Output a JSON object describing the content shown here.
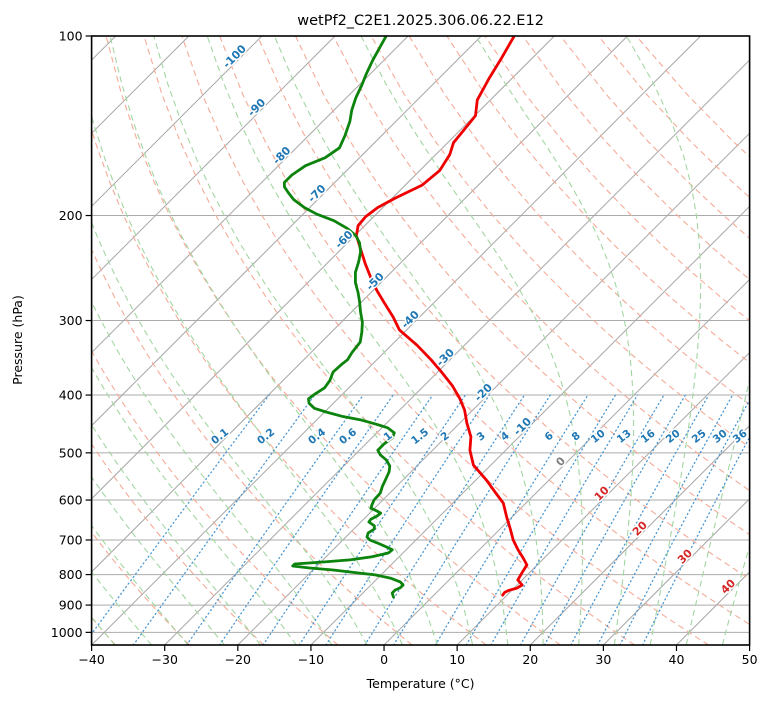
{
  "title": "wetPf2_C2E1.2025.306.06.22.E12",
  "axes": {
    "x_label": "Temperature (°C)",
    "y_label": "Pressure (hPa)",
    "x_ticks": [
      "−40",
      "−30",
      "−20",
      "−10",
      "0",
      "10",
      "20",
      "30",
      "40",
      "50"
    ],
    "x_tick_values": [
      -40,
      -30,
      -20,
      -10,
      0,
      10,
      20,
      30,
      40,
      50
    ],
    "y_ticks": [
      "100",
      "200",
      "300",
      "400",
      "500",
      "600",
      "700",
      "800",
      "900",
      "1000"
    ],
    "y_tick_values": [
      100,
      200,
      300,
      400,
      500,
      600,
      700,
      800,
      900,
      1000
    ]
  },
  "chart_data": {
    "type": "line",
    "variant": "skew-t-log-p",
    "title": "wetPf2_C2E1.2025.306.06.22.E12",
    "xlabel": "Temperature (°C)",
    "ylabel": "Pressure (hPa)",
    "x_range_c": [
      -40,
      50
    ],
    "pressure_range_hpa": [
      100,
      1050
    ],
    "skew_deg": 45,
    "grid": true,
    "legend": "none",
    "series": [
      {
        "name": "temperature",
        "color": "#ee0000",
        "points_p_t": [
          [
            100,
            -65.5
          ],
          [
            109,
            -64.2
          ],
          [
            118,
            -63.1
          ],
          [
            128,
            -61.8
          ],
          [
            136,
            -59.9
          ],
          [
            144,
            -59.5
          ],
          [
            151,
            -59.2
          ],
          [
            158,
            -58.1
          ],
          [
            168,
            -57.3
          ],
          [
            178,
            -57.7
          ],
          [
            187,
            -59.6
          ],
          [
            194,
            -60.7
          ],
          [
            201,
            -61.1
          ],
          [
            208,
            -60.9
          ],
          [
            216,
            -59.8
          ],
          [
            228,
            -57.3
          ],
          [
            241,
            -54.7
          ],
          [
            254,
            -52.1
          ],
          [
            267,
            -49.5
          ],
          [
            280,
            -46.8
          ],
          [
            296,
            -43.6
          ],
          [
            311,
            -41.0
          ],
          [
            330,
            -36.5
          ],
          [
            349,
            -32.6
          ],
          [
            367,
            -29.3
          ],
          [
            386,
            -26.1
          ],
          [
            405,
            -23.4
          ],
          [
            424,
            -21.1
          ],
          [
            446,
            -19.0
          ],
          [
            470,
            -16.6
          ],
          [
            495,
            -14.9
          ],
          [
            524,
            -12.4
          ],
          [
            555,
            -8.6
          ],
          [
            584,
            -5.5
          ],
          [
            607,
            -3.1
          ],
          [
            641,
            -0.7
          ],
          [
            668,
            1.2
          ],
          [
            700,
            3.3
          ],
          [
            727,
            5.3
          ],
          [
            750,
            7.1
          ],
          [
            771,
            8.6
          ],
          [
            795,
            9.0
          ],
          [
            817,
            9.4
          ],
          [
            833,
            10.7
          ],
          [
            843,
            10.4
          ],
          [
            850,
            9.6
          ],
          [
            857,
            9.3
          ],
          [
            866,
            9.4
          ]
        ]
      },
      {
        "name": "dewpoint",
        "color": "#0c830c",
        "points_p_t": [
          [
            100,
            -83.0
          ],
          [
            104,
            -82.4
          ],
          [
            110,
            -81.5
          ],
          [
            116,
            -80.5
          ],
          [
            121,
            -79.6
          ],
          [
            127,
            -78.7
          ],
          [
            133,
            -77.6
          ],
          [
            139,
            -76.3
          ],
          [
            147,
            -75.0
          ],
          [
            154,
            -74.1
          ],
          [
            160,
            -74.7
          ],
          [
            165,
            -76.3
          ],
          [
            171,
            -76.9
          ],
          [
            176,
            -76.9
          ],
          [
            179,
            -76.3
          ],
          [
            183,
            -75.0
          ],
          [
            188,
            -73.3
          ],
          [
            194,
            -70.7
          ],
          [
            199,
            -68.1
          ],
          [
            204,
            -64.9
          ],
          [
            210,
            -62.1
          ],
          [
            216,
            -59.9
          ],
          [
            222,
            -58.4
          ],
          [
            230,
            -57.0
          ],
          [
            239,
            -55.9
          ],
          [
            249,
            -54.9
          ],
          [
            259,
            -53.5
          ],
          [
            269,
            -51.8
          ],
          [
            279,
            -50.3
          ],
          [
            290,
            -48.8
          ],
          [
            302,
            -47.1
          ],
          [
            314,
            -45.8
          ],
          [
            326,
            -44.7
          ],
          [
            339,
            -44.4
          ],
          [
            349,
            -44.0
          ],
          [
            356,
            -44.2
          ],
          [
            366,
            -44.3
          ],
          [
            378,
            -43.6
          ],
          [
            389,
            -43.3
          ],
          [
            399,
            -43.8
          ],
          [
            406,
            -44.0
          ],
          [
            413,
            -43.3
          ],
          [
            421,
            -41.9
          ],
          [
            427,
            -39.8
          ],
          [
            434,
            -37.1
          ],
          [
            440,
            -34.1
          ],
          [
            447,
            -31.5
          ],
          [
            454,
            -29.2
          ],
          [
            463,
            -27.6
          ],
          [
            472,
            -27.2
          ],
          [
            483,
            -27.5
          ],
          [
            495,
            -27.5
          ],
          [
            504,
            -26.5
          ],
          [
            514,
            -25.0
          ],
          [
            526,
            -23.7
          ],
          [
            538,
            -23.0
          ],
          [
            555,
            -22.4
          ],
          [
            570,
            -21.9
          ],
          [
            584,
            -21.3
          ],
          [
            600,
            -21.2
          ],
          [
            612,
            -20.8
          ],
          [
            619,
            -20.5
          ],
          [
            626,
            -19.3
          ],
          [
            631,
            -18.5
          ],
          [
            638,
            -18.6
          ],
          [
            646,
            -19.0
          ],
          [
            653,
            -18.9
          ],
          [
            663,
            -17.6
          ],
          [
            671,
            -17.2
          ],
          [
            681,
            -17.5
          ],
          [
            692,
            -17.1
          ],
          [
            700,
            -16.3
          ],
          [
            708,
            -14.9
          ],
          [
            719,
            -13.1
          ],
          [
            727,
            -11.9
          ],
          [
            736,
            -12.0
          ],
          [
            747,
            -13.7
          ],
          [
            756,
            -16.3
          ],
          [
            762,
            -19.7
          ],
          [
            768,
            -23.3
          ],
          [
            774,
            -23.3
          ],
          [
            780,
            -20.7
          ],
          [
            786,
            -17.2
          ],
          [
            795,
            -13.5
          ],
          [
            801,
            -10.8
          ],
          [
            811,
            -8.3
          ],
          [
            823,
            -6.4
          ],
          [
            833,
            -5.6
          ],
          [
            842,
            -5.6
          ],
          [
            849,
            -6.0
          ],
          [
            859,
            -6.0
          ],
          [
            872,
            -5.3
          ]
        ]
      }
    ],
    "isotherm_labels": [
      {
        "value": "-100",
        "t": -100,
        "color": "#1f77b4"
      },
      {
        "value": "-90",
        "t": -90,
        "color": "#1f77b4"
      },
      {
        "value": "-80",
        "t": -80,
        "color": "#1f77b4"
      },
      {
        "value": "-70",
        "t": -70,
        "color": "#1f77b4"
      },
      {
        "value": "-60",
        "t": -60,
        "color": "#1f77b4"
      },
      {
        "value": "-50",
        "t": -50,
        "color": "#1f77b4"
      },
      {
        "value": "-40",
        "t": -40,
        "color": "#1f77b4"
      },
      {
        "value": "-30",
        "t": -30,
        "color": "#1f77b4"
      },
      {
        "value": "-20",
        "t": -20,
        "color": "#1f77b4"
      },
      {
        "value": "-10",
        "t": -10,
        "color": "#1f77b4"
      },
      {
        "value": "0",
        "t": 0,
        "color": "#808080"
      },
      {
        "value": "10",
        "t": 10,
        "color": "#d62728"
      },
      {
        "value": "20",
        "t": 20,
        "color": "#d62728"
      },
      {
        "value": "30",
        "t": 30,
        "color": "#d62728"
      },
      {
        "value": "40",
        "t": 40,
        "color": "#d62728"
      }
    ],
    "mixing_ratio_labels": [
      "0.1",
      "0.2",
      "0.4",
      "0.6",
      "1",
      "1.5",
      "2",
      "3",
      "4",
      "6",
      "8",
      "10",
      "13",
      "16",
      "20",
      "25",
      "30",
      "36"
    ],
    "mixing_ratio_values": [
      0.1,
      0.2,
      0.4,
      0.6,
      1,
      1.5,
      2,
      3,
      4,
      6,
      8,
      10,
      13,
      16,
      20,
      25,
      30,
      36
    ],
    "background_families": {
      "isotherms": {
        "color": "#a6a6a6",
        "step_c": 10,
        "style": "solid"
      },
      "pressure_grid": {
        "color": "#ababab",
        "step_hpa": 100,
        "style": "solid"
      },
      "dry_adiabats": {
        "color": "#f5ab97",
        "style": "dashed"
      },
      "moist_adiabats": {
        "color": "#a3d6a3",
        "style": "dashed"
      },
      "mixing_lines": {
        "color": "#4a97d2",
        "style": "dotted",
        "label_color": "#1f77b4"
      }
    }
  }
}
